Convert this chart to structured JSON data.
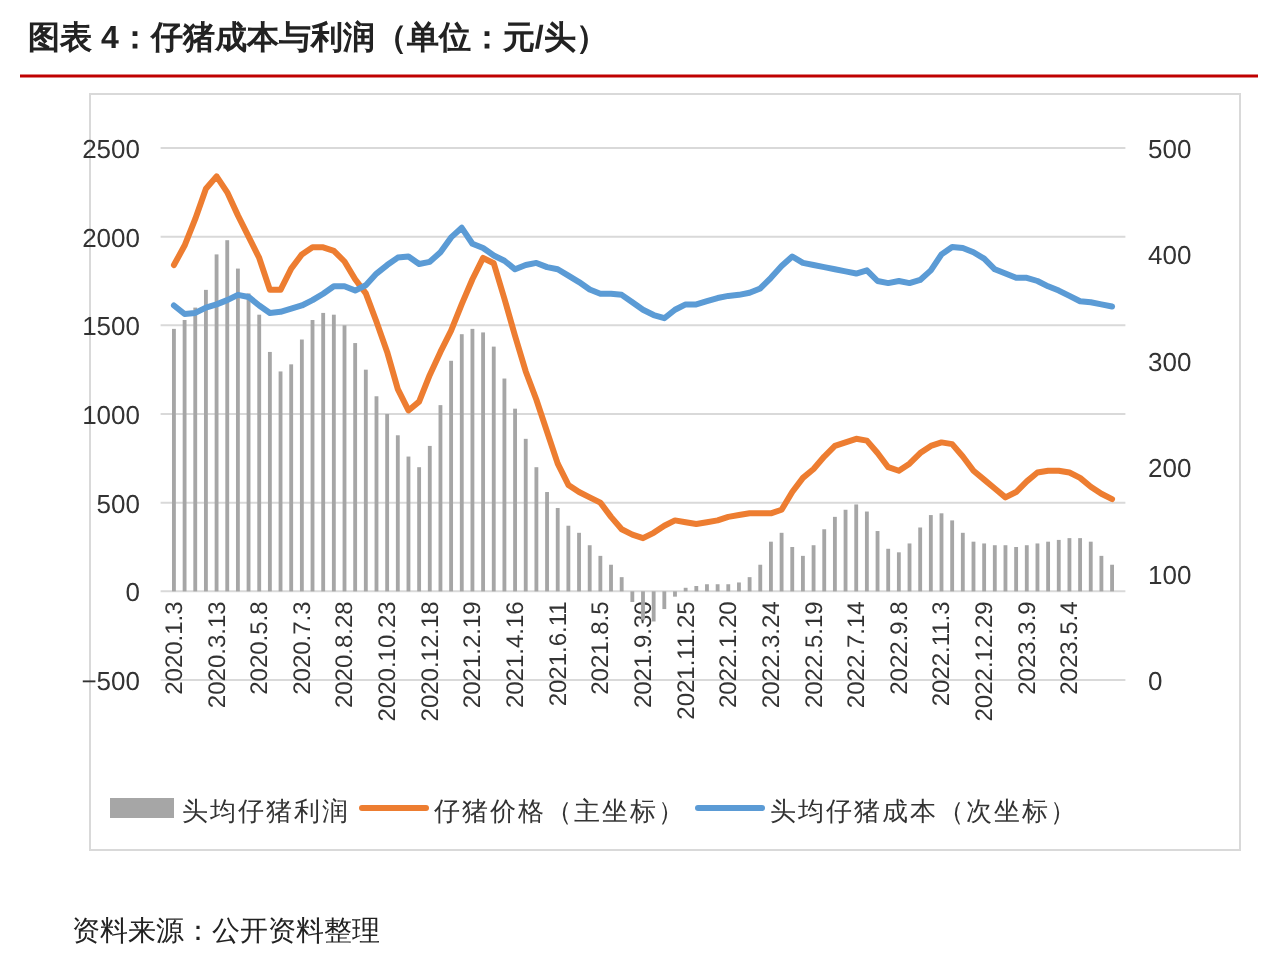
{
  "chart_data": {
    "type": "bar",
    "title": "图表 4：仔猪成本与利润（单位：元/头）",
    "categories": [
      "2020.1.3",
      null,
      null,
      null,
      "2020.3.13",
      null,
      null,
      null,
      "2020.5.8",
      null,
      null,
      null,
      "2020.7.3",
      null,
      null,
      null,
      "2020.8.28",
      null,
      null,
      null,
      "2020.10.23",
      null,
      null,
      null,
      "2020.12.18",
      null,
      null,
      null,
      "2021.2.19",
      null,
      null,
      null,
      "2021.4.16",
      null,
      null,
      null,
      "2021.6.11",
      null,
      null,
      null,
      "2021.8.5",
      null,
      null,
      null,
      "2021.9.30",
      null,
      null,
      null,
      "2021.11.25",
      null,
      null,
      null,
      "2022.1.20",
      null,
      null,
      null,
      "2022.3.24",
      null,
      null,
      null,
      "2022.5.19",
      null,
      null,
      null,
      "2022.7.14",
      null,
      null,
      null,
      "2022.9.8",
      null,
      null,
      null,
      "2022.11.3",
      null,
      null,
      null,
      "2022.12.29",
      null,
      null,
      null,
      "2023.3.9",
      null,
      null,
      null,
      "2023.5.4",
      null,
      null,
      null,
      null
    ],
    "series": [
      {
        "name": "头均仔猪利润",
        "color": "#a6a6a6",
        "values": [
          1480,
          1530,
          1600,
          1700,
          1900,
          1980,
          1820,
          1680,
          1560,
          1350,
          1240,
          1280,
          1420,
          1530,
          1570,
          1560,
          1500,
          1400,
          1250,
          1100,
          1000,
          880,
          760,
          700,
          820,
          1050,
          1300,
          1450,
          1480,
          1460,
          1380,
          1200,
          1030,
          860,
          700,
          560,
          470,
          370,
          330,
          260,
          200,
          150,
          80,
          -60,
          -160,
          -170,
          -100,
          -30,
          20,
          30,
          40,
          40,
          40,
          50,
          80,
          150,
          280,
          330,
          250,
          200,
          260,
          350,
          420,
          460,
          490,
          450,
          340,
          240,
          220,
          270,
          360,
          430,
          440,
          400,
          330,
          280,
          270,
          260,
          260,
          250,
          260,
          270,
          280,
          290,
          300,
          300,
          280,
          200,
          150
        ]
      },
      {
        "name": "仔猪价格（主坐标）",
        "type": "line",
        "color": "#ed7d31",
        "values": [
          1840,
          1950,
          2100,
          2270,
          2340,
          2250,
          2120,
          2000,
          1880,
          1700,
          1700,
          1820,
          1900,
          1940,
          1940,
          1920,
          1860,
          1760,
          1680,
          1520,
          1350,
          1140,
          1020,
          1070,
          1220,
          1350,
          1470,
          1620,
          1760,
          1880,
          1850,
          1650,
          1440,
          1240,
          1080,
          900,
          720,
          600,
          560,
          530,
          500,
          420,
          350,
          320,
          300,
          330,
          370,
          400,
          390,
          380,
          390,
          400,
          420,
          430,
          440,
          440,
          440,
          460,
          560,
          640,
          690,
          760,
          820,
          840,
          860,
          850,
          780,
          700,
          680,
          720,
          780,
          820,
          840,
          830,
          760,
          680,
          630,
          580,
          530,
          560,
          620,
          670,
          680,
          680,
          670,
          640,
          590,
          550,
          520
        ]
      },
      {
        "name": "头均仔猪成本（次坐标）",
        "type": "line",
        "axis": "y2",
        "color": "#5b9bd5",
        "values": [
          352,
          344,
          345,
          350,
          353,
          357,
          362,
          360,
          352,
          345,
          346,
          349,
          352,
          357,
          363,
          370,
          370,
          366,
          371,
          382,
          390,
          397,
          398,
          391,
          393,
          402,
          416,
          425,
          410,
          406,
          399,
          394,
          386,
          390,
          392,
          388,
          386,
          380,
          374,
          367,
          363,
          363,
          362,
          355,
          348,
          343,
          340,
          348,
          353,
          353,
          356,
          359,
          361,
          362,
          364,
          368,
          378,
          389,
          398,
          392,
          390,
          388,
          386,
          384,
          382,
          385,
          375,
          373,
          375,
          373,
          376,
          385,
          400,
          407,
          406,
          402,
          396,
          386,
          382,
          378,
          378,
          375,
          370,
          366,
          361,
          356,
          355,
          353,
          351
        ]
      }
    ],
    "ylim": [
      -500,
      2500
    ],
    "yticks": [
      -500,
      0,
      500,
      1000,
      1500,
      2000,
      2500
    ],
    "y2lim": [
      0,
      500
    ],
    "y2ticks": [
      0,
      100,
      200,
      300,
      400,
      500
    ],
    "grid": "y",
    "legend": "bottom",
    "annotations": [
      "资料来源：公开资料整理"
    ]
  }
}
